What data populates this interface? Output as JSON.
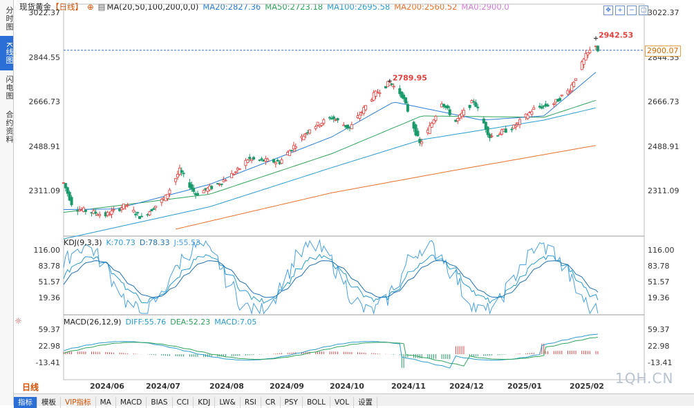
{
  "sidebar": {
    "tabs": [
      "分时图",
      "K线图",
      "闪电图",
      "合约资料"
    ],
    "active_index": 1
  },
  "header": {
    "instrument": "现货黄金",
    "period": "【日线】",
    "ma_label": "MA(20,50,100,200,0,0)",
    "ma20": "MA20:2827.36",
    "ma50": "MA50:2723.18",
    "ma100": "MA100:2695.58",
    "ma200": "MA200:2560.52",
    "ma0": "MA0:2900.0"
  },
  "toolbar_icons": [
    "expand-icon",
    "zoom-in-icon",
    "zoom-out-icon",
    "fullscreen-icon"
  ],
  "kdj": {
    "title": "KDJ(9,3,3)",
    "k": "K:70.73",
    "d": "D:78.33",
    "j": "J:55.53"
  },
  "macd": {
    "title": "MACD(26,12,9)",
    "diff": "DIFF:55.76",
    "dea": "DEA:52.23",
    "macd": "MACD:7.05"
  },
  "price_ticks": [
    "3022.37",
    "2844.55",
    "2666.73",
    "2488.91",
    "2311.09"
  ],
  "kdj_ticks": [
    "116.00",
    "83.78",
    "51.57",
    "19.36"
  ],
  "macd_ticks": [
    "59.37",
    "22.98",
    "-13.41"
  ],
  "current_price": "2900.07",
  "annotations": {
    "high1": "2789.95",
    "high2": "2942.53"
  },
  "x_labels": [
    "2024/06",
    "2024/07",
    "2024/08",
    "2024/09",
    "2024/10",
    "2024/11",
    "2024/12",
    "2025/01",
    "2025/02"
  ],
  "period_button": "日线",
  "bottom_tabs": [
    "指标",
    "模板",
    "VIP指标",
    "MA",
    "MACD",
    "BIAS",
    "CCI",
    "KDJ",
    "LW&",
    "RSI",
    "CR",
    "PSY",
    "BOLL",
    "VOL",
    "设置"
  ],
  "watermark": "1QH.CN",
  "colors": {
    "up": "#e0403c",
    "down": "#1a9a6a",
    "ma20": "#2a7dd6",
    "ma50": "#2fa35a",
    "ma100": "#2a9bd0",
    "ma200": "#e8702a",
    "k": "#2a9bd0",
    "d": "#1f6fb0",
    "j": "#4aa0e0",
    "dif": "#2a9bd0",
    "dea": "#2fa35a"
  },
  "chart_data": {
    "type": "candlestick",
    "title": "现货黄金 【日线】",
    "x_range": [
      "2024/05/20",
      "2025/02/10"
    ],
    "price_range": [
      2240,
      3060
    ],
    "price_anchors": [
      {
        "date": "2024/05/20",
        "close": 2425
      },
      {
        "date": "2024/05/25",
        "close": 2335
      },
      {
        "date": "2024/06/10",
        "close": 2310
      },
      {
        "date": "2024/06/20",
        "close": 2345
      },
      {
        "date": "2024/06/28",
        "close": 2300
      },
      {
        "date": "2024/07/10",
        "close": 2375
      },
      {
        "date": "2024/07/17",
        "close": 2470
      },
      {
        "date": "2024/07/25",
        "close": 2385
      },
      {
        "date": "2024/08/05",
        "close": 2420
      },
      {
        "date": "2024/08/15",
        "close": 2470
      },
      {
        "date": "2024/08/20",
        "close": 2510
      },
      {
        "date": "2024/09/05",
        "close": 2500
      },
      {
        "date": "2024/09/20",
        "close": 2620
      },
      {
        "date": "2024/10/01",
        "close": 2660
      },
      {
        "date": "2024/10/10",
        "close": 2620
      },
      {
        "date": "2024/10/22",
        "close": 2740
      },
      {
        "date": "2024/10/30",
        "close": 2785
      },
      {
        "date": "2024/11/05",
        "close": 2740
      },
      {
        "date": "2024/11/08",
        "close": 2685
      },
      {
        "date": "2024/11/14",
        "close": 2565
      },
      {
        "date": "2024/11/18",
        "close": 2610
      },
      {
        "date": "2024/11/25",
        "close": 2715
      },
      {
        "date": "2024/12/02",
        "close": 2645
      },
      {
        "date": "2024/12/11",
        "close": 2720
      },
      {
        "date": "2024/12/19",
        "close": 2590
      },
      {
        "date": "2024/12/31",
        "close": 2625
      },
      {
        "date": "2025/01/10",
        "close": 2690
      },
      {
        "date": "2025/01/20",
        "close": 2710
      },
      {
        "date": "2025/01/28",
        "close": 2760
      },
      {
        "date": "2025/02/05",
        "close": 2880
      },
      {
        "date": "2025/02/10",
        "close": 2920
      },
      {
        "date": "2025/02/11",
        "close": 2900
      }
    ],
    "ma_endpoints": {
      "MA20": [
        {
          "date": "2024/05/20",
          "value": 2330
        },
        {
          "date": "2024/06/15",
          "value": 2332
        },
        {
          "date": "2024/08/01",
          "value": 2420
        },
        {
          "date": "2024/10/01",
          "value": 2590
        },
        {
          "date": "2024/11/01",
          "value": 2715
        },
        {
          "date": "2024/12/15",
          "value": 2650
        },
        {
          "date": "2025/01/15",
          "value": 2665
        },
        {
          "date": "2025/02/11",
          "value": 2827.36
        }
      ],
      "MA50": [
        {
          "date": "2024/05/20",
          "value": 2320
        },
        {
          "date": "2024/08/01",
          "value": 2385
        },
        {
          "date": "2024/10/01",
          "value": 2530
        },
        {
          "date": "2024/11/15",
          "value": 2665
        },
        {
          "date": "2025/01/15",
          "value": 2660
        },
        {
          "date": "2025/02/11",
          "value": 2723.18
        }
      ],
      "MA100": [
        {
          "date": "2024/05/20",
          "value": 2225
        },
        {
          "date": "2024/08/01",
          "value": 2340
        },
        {
          "date": "2024/10/01",
          "value": 2480
        },
        {
          "date": "2024/11/15",
          "value": 2580
        },
        {
          "date": "2025/01/15",
          "value": 2650
        },
        {
          "date": "2025/02/11",
          "value": 2695.58
        }
      ],
      "MA200": [
        {
          "date": "2024/07/15",
          "value": 2260
        },
        {
          "date": "2024/10/01",
          "value": 2390
        },
        {
          "date": "2024/12/01",
          "value": 2470
        },
        {
          "date": "2025/02/11",
          "value": 2560.52
        }
      ]
    },
    "current_line": 2900.07,
    "annotated_highs": [
      {
        "date": "2024/10/30",
        "value": 2789.95
      },
      {
        "date": "2025/02/10",
        "value": 2942.53
      }
    ],
    "kdj_range": [
      0,
      130
    ],
    "macd_range": [
      -60,
      70
    ],
    "grid": false,
    "legend": "top-left"
  }
}
